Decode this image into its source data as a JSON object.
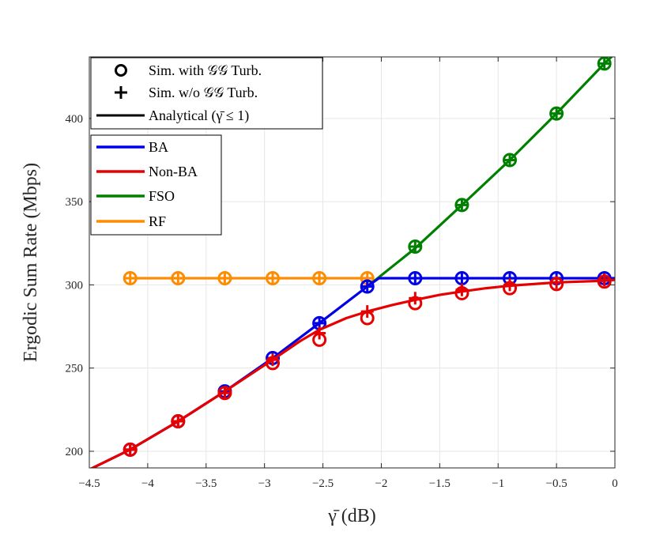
{
  "chart_data": {
    "type": "line",
    "title": "",
    "xlabel": "γ̄ (dB)",
    "ylabel": "Ergodic Sum Rate (Mbps)",
    "xlim": [
      -4.5,
      0
    ],
    "ylim": [
      190,
      437
    ],
    "xticks": [
      -4.5,
      -4,
      -3.5,
      -3,
      -2.5,
      -2,
      -1.5,
      -1,
      -0.5,
      0
    ],
    "xtick_labels": [
      "−4.5",
      "−4",
      "−3.5",
      "−3",
      "−2.5",
      "−2",
      "−1.5",
      "−1",
      "−0.5",
      "0"
    ],
    "yticks": [
      200,
      250,
      300,
      350,
      400
    ],
    "ytick_labels": [
      "200",
      "250",
      "300",
      "350",
      "400"
    ],
    "grid": true,
    "colors": {
      "BA": "#0000e6",
      "Non-BA": "#e60000",
      "FSO": "#008000",
      "RF": "#ff8c00"
    },
    "marker_x": [
      -4.15,
      -3.74,
      -3.34,
      -2.93,
      -2.53,
      -2.12,
      -1.71,
      -1.31,
      -0.9,
      -0.5,
      -0.09
    ],
    "series": [
      {
        "name": "RF",
        "line_x": [
          -4.15,
          -2.12
        ],
        "line_y": [
          304,
          304
        ],
        "sim_with_gg": [
          [
            -4.15,
            304
          ],
          [
            -3.74,
            304
          ],
          [
            -3.34,
            304
          ],
          [
            -2.93,
            304
          ],
          [
            -2.53,
            304
          ],
          [
            -2.12,
            304
          ]
        ],
        "sim_without_gg": [
          [
            -4.15,
            304
          ],
          [
            -3.74,
            304
          ],
          [
            -3.34,
            304
          ],
          [
            -2.93,
            304
          ],
          [
            -2.53,
            304
          ],
          [
            -2.12,
            304
          ]
        ]
      },
      {
        "name": "FSO",
        "line_x": [
          -2.12,
          -1.71,
          -1.31,
          -0.9,
          -0.5,
          -0.09,
          0
        ],
        "line_y": [
          299,
          322,
          348,
          375,
          403,
          433,
          439
        ],
        "sim_with_gg": [
          [
            -1.71,
            323
          ],
          [
            -1.31,
            348
          ],
          [
            -0.9,
            375
          ],
          [
            -0.5,
            403
          ],
          [
            -0.09,
            433
          ]
        ],
        "sim_without_gg": [
          [
            -1.71,
            323
          ],
          [
            -1.31,
            348
          ],
          [
            -0.9,
            375
          ],
          [
            -0.5,
            403
          ],
          [
            -0.09,
            433
          ]
        ]
      },
      {
        "name": "BA",
        "line_x": [
          -4.5,
          -4.15,
          -3.74,
          -3.34,
          -2.93,
          -2.53,
          -2.12,
          -2.02,
          -1.71,
          -1.31,
          -0.9,
          -0.5,
          -0.09,
          0
        ],
        "line_y": [
          189,
          201,
          218,
          236,
          256,
          277,
          299,
          304,
          304,
          304,
          304,
          304,
          304,
          304
        ],
        "sim_with_gg": [
          [
            -4.15,
            201
          ],
          [
            -3.74,
            218
          ],
          [
            -3.34,
            236
          ],
          [
            -2.93,
            256
          ],
          [
            -2.53,
            277
          ],
          [
            -2.12,
            299
          ],
          [
            -1.71,
            304
          ],
          [
            -1.31,
            304
          ],
          [
            -0.9,
            304
          ],
          [
            -0.5,
            304
          ],
          [
            -0.09,
            304
          ]
        ],
        "sim_without_gg": [
          [
            -4.15,
            201
          ],
          [
            -3.74,
            218
          ],
          [
            -3.34,
            236
          ],
          [
            -2.93,
            256
          ],
          [
            -2.53,
            277
          ],
          [
            -2.12,
            299
          ],
          [
            -1.71,
            304
          ],
          [
            -1.31,
            304
          ],
          [
            -0.9,
            304
          ],
          [
            -0.5,
            304
          ],
          [
            -0.09,
            304
          ]
        ]
      },
      {
        "name": "Non-BA",
        "line_x": [
          -4.5,
          -4.15,
          -3.74,
          -3.34,
          -2.93,
          -2.7,
          -2.53,
          -2.3,
          -2.12,
          -1.9,
          -1.71,
          -1.5,
          -1.31,
          -1.1,
          -0.9,
          -0.5,
          -0.09,
          0
        ],
        "line_y": [
          189,
          201,
          218,
          236,
          255,
          266,
          273,
          280,
          284,
          288,
          291,
          294,
          296,
          298,
          299.5,
          301.5,
          302.5,
          303
        ],
        "sim_with_gg": [
          [
            -4.15,
            201
          ],
          [
            -3.74,
            218
          ],
          [
            -3.34,
            235
          ],
          [
            -2.93,
            253
          ],
          [
            -2.53,
            267
          ],
          [
            -2.12,
            280
          ],
          [
            -1.71,
            289
          ],
          [
            -1.31,
            295
          ],
          [
            -0.9,
            298
          ],
          [
            -0.5,
            300.5
          ],
          [
            -0.09,
            302
          ]
        ],
        "sim_without_gg": [
          [
            -4.15,
            201
          ],
          [
            -3.74,
            218
          ],
          [
            -3.34,
            235
          ],
          [
            -2.93,
            255
          ],
          [
            -2.53,
            271
          ],
          [
            -2.12,
            284
          ],
          [
            -1.71,
            292
          ],
          [
            -1.31,
            297
          ],
          [
            -0.9,
            300
          ],
          [
            -0.5,
            301.5
          ],
          [
            -0.09,
            303
          ]
        ]
      }
    ],
    "legend_markers": {
      "placement": "top-left",
      "entries": [
        {
          "symbol": "circle",
          "label": "Sim. with 𝒢𝒢 Turb."
        },
        {
          "symbol": "plus",
          "label": "Sim. w/o 𝒢𝒢 Turb."
        },
        {
          "symbol": "line",
          "label": "Analytical (γ̄ ≤ 1)"
        }
      ]
    },
    "legend_series": {
      "placement": "top-left",
      "entries": [
        "BA",
        "Non-BA",
        "FSO",
        "RF"
      ]
    }
  }
}
